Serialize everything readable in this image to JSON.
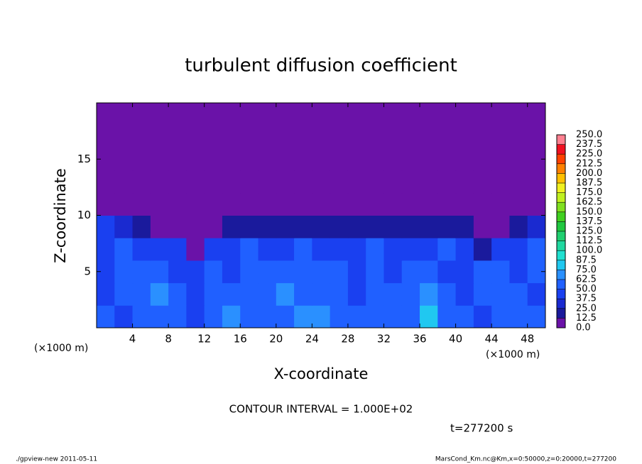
{
  "chart_data": {
    "type": "heatmap",
    "title": "turbulent diffusion coefficient",
    "xlabel": "X-coordinate",
    "ylabel": "Z-coordinate",
    "x_unit_left": "(×1000 m)",
    "x_unit_right": "(×1000 m)",
    "contour_note": "CONTOUR INTERVAL = 1.000E+02",
    "time_note": "t=277200 s",
    "footer_left": "./gpview-new  2011-05-11",
    "footer_right": "MarsCond_Km.nc@Km,x=0:50000,z=0:20000,t=277200",
    "xlim": [
      0,
      50
    ],
    "ylim": [
      0,
      20
    ],
    "xticks": [
      4,
      8,
      12,
      16,
      20,
      24,
      28,
      32,
      36,
      40,
      44,
      48
    ],
    "yticks": [
      5,
      10,
      15
    ],
    "levels": [
      {
        "value": 0,
        "label": "0.0"
      },
      12.5,
      {
        "value": 25,
        "label": "25.0"
      },
      37.5,
      {
        "value": 50,
        "label": "50.0"
      },
      62.5,
      {
        "value": 75,
        "label": "75.0"
      },
      87.5,
      {
        "value": 100,
        "label": "100.0"
      },
      112.5,
      {
        "value": 125,
        "label": "125.0"
      },
      137.5,
      {
        "value": 150,
        "label": "150.0"
      },
      162.5,
      {
        "value": 175,
        "label": "175.0"
      },
      187.5,
      {
        "value": 200,
        "label": "200.0"
      },
      212.5,
      {
        "value": 225,
        "label": "225.0"
      },
      237.5,
      {
        "value": 250,
        "label": "250.0"
      }
    ],
    "colors": [
      "#6a12a8",
      "#1a1a9c",
      "#1a2ad0",
      "#1a40f0",
      "#2060ff",
      "#2a90ff",
      "#20c8f0",
      "#20e0d0",
      "#20d8a0",
      "#20d070",
      "#20c840",
      "#40d020",
      "#80e020",
      "#c0f020",
      "#f0f020",
      "#ffc000",
      "#ff8000",
      "#ff4000",
      "#f01020",
      "#ff8090"
    ],
    "values": [
      [
        50,
        45,
        55,
        60,
        50,
        45,
        60,
        70,
        55,
        50,
        60,
        65,
        70,
        55,
        50,
        50,
        55,
        60,
        75,
        55,
        50,
        45,
        50,
        55,
        50
      ],
      [
        45,
        50,
        55,
        65,
        55,
        45,
        50,
        55,
        60,
        55,
        70,
        60,
        55,
        50,
        45,
        55,
        50,
        60,
        70,
        50,
        45,
        55,
        60,
        50,
        45
      ],
      [
        40,
        50,
        55,
        50,
        45,
        45,
        55,
        45,
        55,
        50,
        55,
        60,
        50,
        55,
        45,
        60,
        45,
        55,
        55,
        45,
        45,
        50,
        55,
        45,
        50
      ],
      [
        45,
        50,
        45,
        40,
        40,
        0,
        40,
        45,
        50,
        45,
        40,
        50,
        45,
        40,
        40,
        50,
        45,
        40,
        45,
        50,
        40,
        20,
        40,
        45,
        50
      ],
      [
        40,
        30,
        20,
        10,
        10,
        0,
        10,
        20,
        20,
        20,
        20,
        20,
        20,
        20,
        20,
        20,
        20,
        20,
        20,
        20,
        20,
        10,
        0,
        20,
        30
      ],
      [
        0,
        0,
        0,
        0,
        0,
        0,
        0,
        0,
        0,
        0,
        0,
        0,
        0,
        0,
        0,
        0,
        0,
        0,
        0,
        0,
        0,
        0,
        0,
        0,
        0
      ],
      [
        0,
        0,
        0,
        0,
        0,
        0,
        0,
        0,
        0,
        0,
        0,
        0,
        0,
        0,
        0,
        0,
        0,
        0,
        0,
        0,
        0,
        0,
        0,
        0,
        0
      ],
      [
        0,
        0,
        0,
        0,
        0,
        0,
        0,
        0,
        0,
        0,
        0,
        0,
        0,
        0,
        0,
        0,
        0,
        0,
        0,
        0,
        0,
        0,
        0,
        0,
        0
      ],
      [
        0,
        0,
        0,
        0,
        0,
        0,
        0,
        0,
        0,
        0,
        0,
        0,
        0,
        0,
        0,
        0,
        0,
        0,
        0,
        0,
        0,
        0,
        0,
        0,
        0
      ],
      [
        0,
        0,
        0,
        0,
        0,
        0,
        0,
        0,
        0,
        0,
        0,
        0,
        0,
        0,
        0,
        0,
        0,
        0,
        0,
        0,
        0,
        0,
        0,
        0,
        0
      ]
    ]
  }
}
